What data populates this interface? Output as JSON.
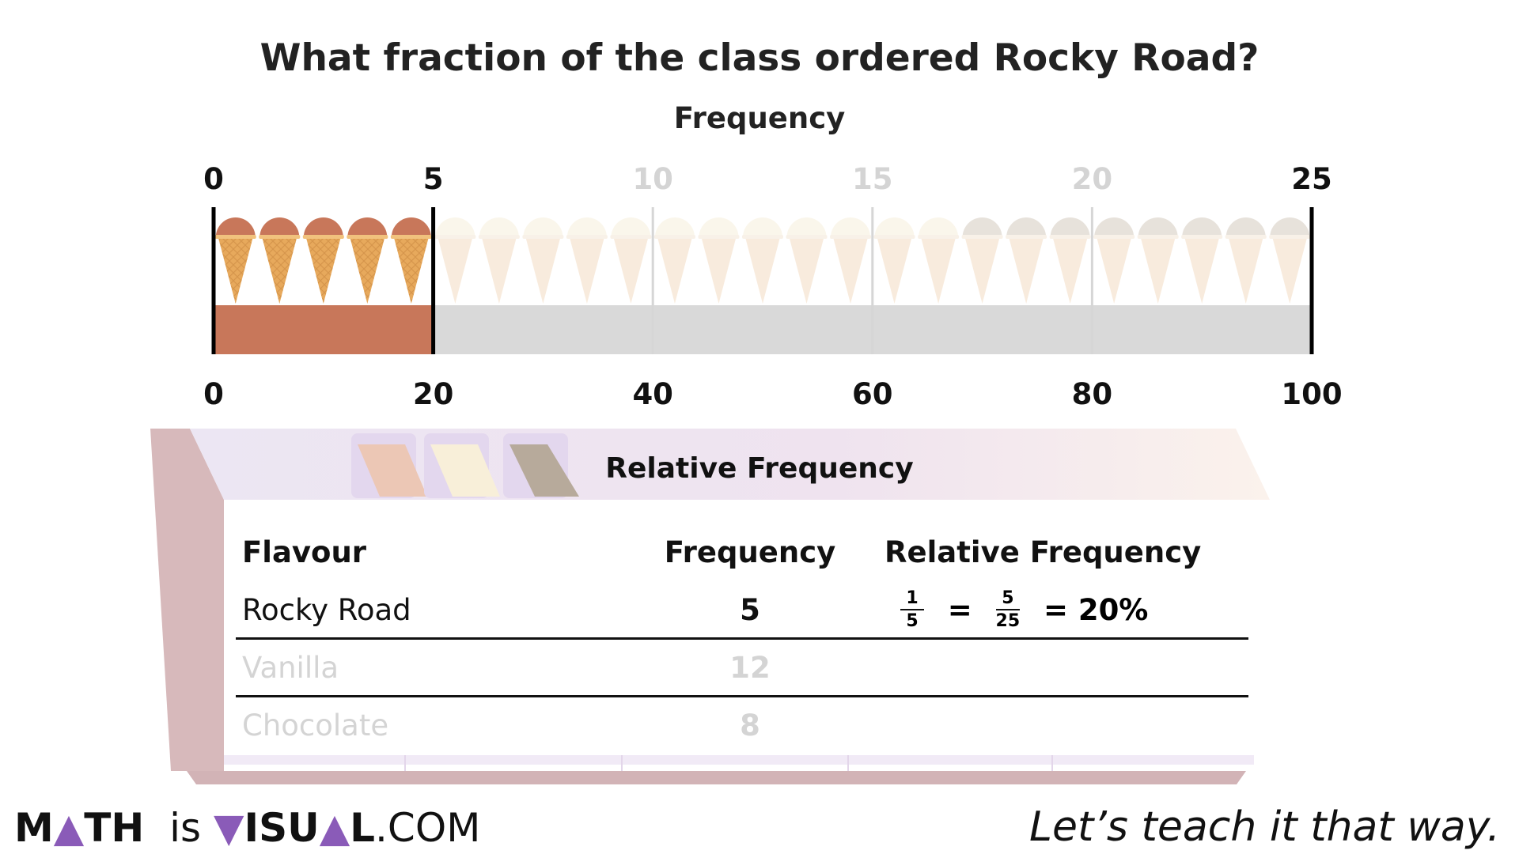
{
  "question": "What fraction of the class ordered Rocky Road?",
  "top_axis_title": "Frequency",
  "top_ticks": [
    {
      "label": "0",
      "value": 0,
      "muted": false
    },
    {
      "label": "5",
      "value": 5,
      "muted": false
    },
    {
      "label": "10",
      "value": 10,
      "muted": true
    },
    {
      "label": "15",
      "value": 15,
      "muted": true
    },
    {
      "label": "20",
      "value": 20,
      "muted": true
    },
    {
      "label": "25",
      "value": 25,
      "muted": false
    }
  ],
  "bottom_ticks": [
    {
      "label": "0",
      "value": 0
    },
    {
      "label": "20",
      "value": 20
    },
    {
      "label": "40",
      "value": 40
    },
    {
      "label": "60",
      "value": 60
    },
    {
      "label": "80",
      "value": 80
    },
    {
      "label": "100",
      "value": 100
    }
  ],
  "cones": {
    "total": 25,
    "groups": [
      {
        "flavour": "Rocky Road",
        "count": 5,
        "scoop_color": "#c8775a",
        "highlighted": true
      },
      {
        "flavour": "Vanilla",
        "count": 12,
        "scoop_color": "#f7efdc",
        "highlighted": false
      },
      {
        "flavour": "Chocolate",
        "count": 8,
        "scoop_color": "#d5cbbf",
        "highlighted": false
      }
    ]
  },
  "bar": {
    "filled_fraction": 0.2,
    "fill_color": "#c8775a",
    "rest_color": "#d9d9d9"
  },
  "board_title": "Relative Frequency",
  "table": {
    "headers": {
      "flavour": "Flavour",
      "frequency": "Frequency",
      "relative": "Relative Frequency"
    },
    "rows": [
      {
        "flavour": "Rocky Road",
        "frequency": "5",
        "muted": false
      },
      {
        "flavour": "Vanilla",
        "frequency": "12",
        "muted": true
      },
      {
        "flavour": "Chocolate",
        "frequency": "8",
        "muted": true
      }
    ],
    "relative": {
      "frac1_num": "1",
      "frac1_den": "5",
      "eq1": "=",
      "frac2_num": "5",
      "frac2_den": "25",
      "result": "= 20%"
    }
  },
  "footer": {
    "brand_m": "M",
    "brand_a": "▲",
    "brand_th": "TH",
    "brand_is": "is",
    "brand_v": "▼",
    "brand_isu": "ISU",
    "brand_a2": "▲",
    "brand_l": "L",
    "brand_com": ".COM",
    "tagline": "Let’s teach it that way."
  }
}
